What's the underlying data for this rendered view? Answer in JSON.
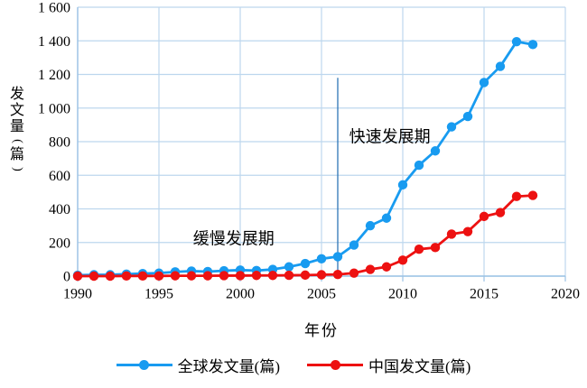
{
  "chart_data": {
    "type": "line",
    "title": "",
    "xlabel": "年份",
    "ylabel": "发文量(篇)",
    "x_range": [
      1990,
      2020
    ],
    "xticks": [
      1990,
      1995,
      2000,
      2005,
      2010,
      2015,
      2020
    ],
    "ylim": [
      0,
      1600
    ],
    "yticks": [
      0,
      200,
      400,
      600,
      800,
      1000,
      1200,
      1400,
      1600
    ],
    "ytick_labels": [
      "0",
      "200",
      "400",
      "600",
      "800",
      "1 000",
      "1 200",
      "1 400",
      "1 600"
    ],
    "grid": true,
    "legend_position": "bottom",
    "x": [
      1990,
      1991,
      1992,
      1993,
      1994,
      1995,
      1996,
      1997,
      1998,
      1999,
      2000,
      2001,
      2002,
      2003,
      2004,
      2005,
      2006,
      2007,
      2008,
      2009,
      2010,
      2011,
      2012,
      2013,
      2014,
      2015,
      2016,
      2017,
      2018
    ],
    "series": [
      {
        "name": "全球发文量(篇)",
        "color": "#189BF0",
        "marker": "circle",
        "values": [
          5,
          8,
          8,
          12,
          15,
          18,
          25,
          30,
          27,
          32,
          36,
          33,
          40,
          55,
          75,
          103,
          116,
          185,
          300,
          345,
          543,
          660,
          745,
          888,
          950,
          1152,
          1248,
          1395,
          1378
        ]
      },
      {
        "name": "中国发文量(篇)",
        "color": "#ED1111",
        "marker": "circle",
        "values": [
          0,
          0,
          0,
          1,
          1,
          1,
          2,
          2,
          2,
          3,
          3,
          4,
          4,
          5,
          6,
          8,
          10,
          18,
          40,
          55,
          95,
          160,
          170,
          250,
          265,
          355,
          378,
          474,
          480
        ]
      }
    ],
    "annotations": {
      "slow_label": {
        "text": "缓慢发展期",
        "year": 1999.6,
        "value": 225
      },
      "fast_label": {
        "text": "快速发展期",
        "year": 2009.2,
        "value": 830
      },
      "divider_line": {
        "year": 2006,
        "value_from": 0,
        "value_to": 1180,
        "color": "#2E75B6"
      }
    },
    "colors": {
      "grid": "#BDD7EE",
      "axis": "#9CC3E5",
      "text": "#000000",
      "background": "#FFFFFF"
    }
  }
}
